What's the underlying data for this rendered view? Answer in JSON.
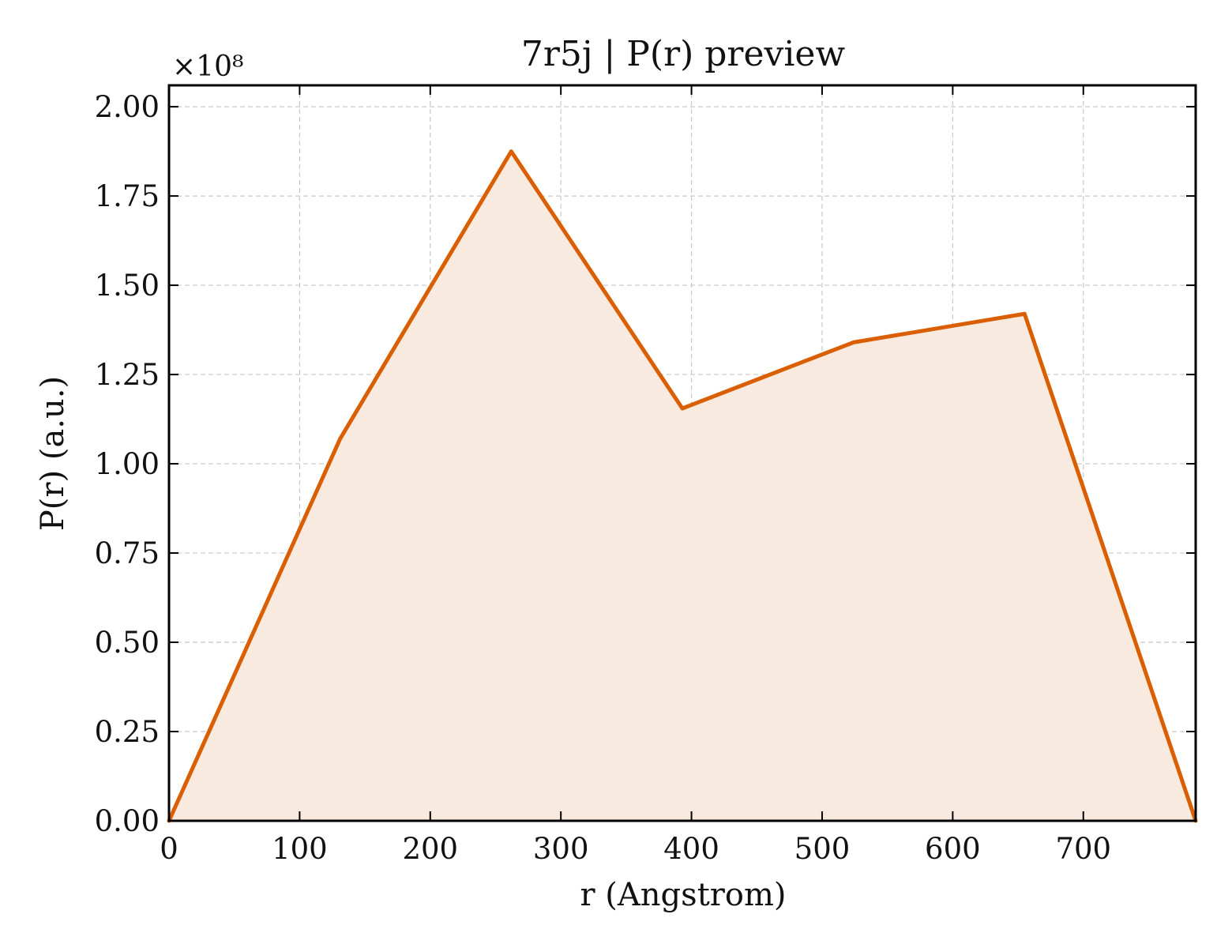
{
  "chart_data": {
    "type": "area",
    "title": "7r5j | P(r) preview",
    "xlabel": "r (Angstrom)",
    "ylabel": "P(r) (a.u.)",
    "y_multiplier_label": "×10⁸",
    "y_scale": 100000000,
    "xlim": [
      0,
      786
    ],
    "ylim": [
      0,
      2.06
    ],
    "x_ticks": [
      0,
      100,
      200,
      300,
      400,
      500,
      600,
      700
    ],
    "x_tick_labels": [
      "0",
      "100",
      "200",
      "300",
      "400",
      "500",
      "600",
      "700"
    ],
    "y_ticks": [
      0,
      0.25,
      0.5,
      0.75,
      1.0,
      1.25,
      1.5,
      1.75,
      2.0
    ],
    "y_tick_labels": [
      "0.00",
      "0.25",
      "0.50",
      "0.75",
      "1.00",
      "1.25",
      "1.50",
      "1.75",
      "2.00"
    ],
    "grid": true,
    "series": [
      {
        "x": [
          0,
          131,
          262,
          393,
          524,
          655,
          786
        ],
        "y": [
          0.0,
          1.07,
          1.875,
          1.155,
          1.34,
          1.42,
          0.0
        ],
        "color": "#d95f02",
        "fill_color": "#f9eadf"
      }
    ]
  }
}
